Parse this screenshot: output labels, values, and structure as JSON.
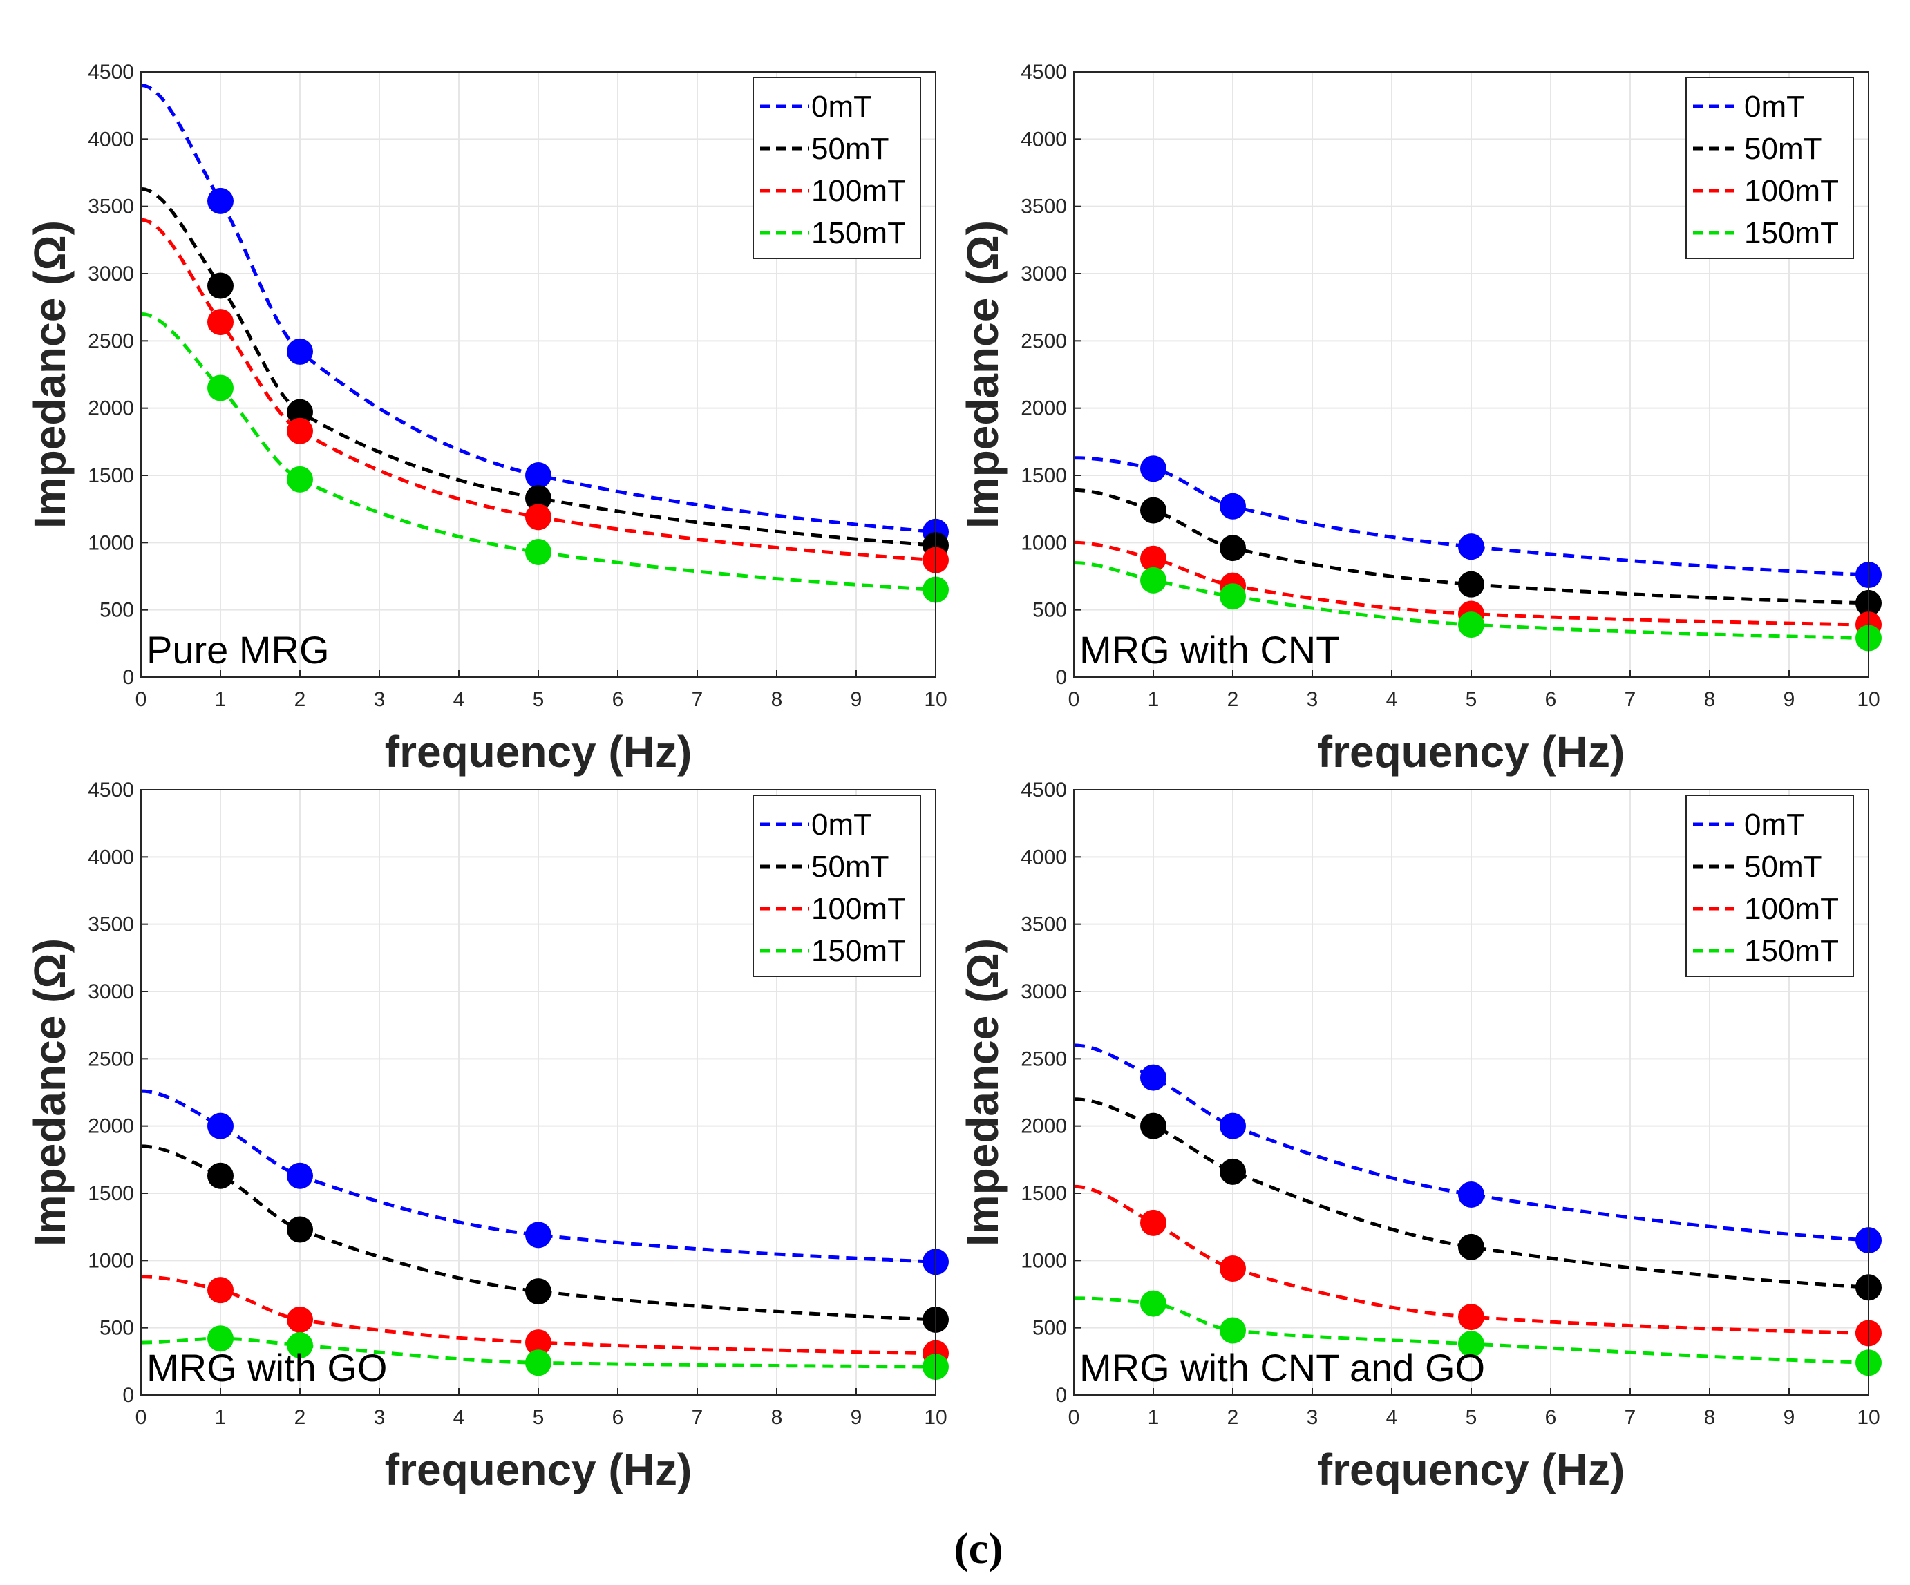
{
  "figure": {
    "caption": "(c)"
  },
  "chart_data": [
    {
      "type": "line",
      "panel_label": "Pure MRG",
      "xlabel": "frequency (Hz)",
      "ylabel": "Impedance (Ω)",
      "xlim": [
        0,
        10
      ],
      "ylim": [
        0,
        4500
      ],
      "x_ticks": [
        "0",
        "1",
        "2",
        "3",
        "4",
        "5",
        "6",
        "7",
        "8",
        "9",
        "10"
      ],
      "y_ticks": [
        "0",
        "500",
        "1000",
        "1500",
        "2000",
        "2500",
        "3000",
        "3500",
        "4000",
        "4500"
      ],
      "grid": true,
      "legend_position": "top-right",
      "x": [
        1,
        2,
        5,
        10
      ],
      "series": [
        {
          "name": "0mT",
          "color": "#0000ff",
          "values": [
            3540,
            2420,
            1500,
            1080
          ],
          "curve_start": 4400
        },
        {
          "name": "50mT",
          "color": "#000000",
          "values": [
            2910,
            1970,
            1330,
            980
          ],
          "curve_start": 3630
        },
        {
          "name": "100mT",
          "color": "#ff0000",
          "values": [
            2640,
            1830,
            1190,
            870
          ],
          "curve_start": 3400
        },
        {
          "name": "150mT",
          "color": "#00e000",
          "values": [
            2150,
            1470,
            930,
            650
          ],
          "curve_start": 2700
        }
      ]
    },
    {
      "type": "line",
      "panel_label": "MRG with CNT",
      "xlabel": "frequency (Hz)",
      "ylabel": "Impedance (Ω)",
      "xlim": [
        0,
        10
      ],
      "ylim": [
        0,
        4500
      ],
      "x_ticks": [
        "0",
        "1",
        "2",
        "3",
        "4",
        "5",
        "6",
        "7",
        "8",
        "9",
        "10"
      ],
      "y_ticks": [
        "0",
        "500",
        "1000",
        "1500",
        "2000",
        "2500",
        "3000",
        "3500",
        "4000",
        "4500"
      ],
      "grid": true,
      "legend_position": "top-right",
      "x": [
        1,
        2,
        5,
        10
      ],
      "series": [
        {
          "name": "0mT",
          "color": "#0000ff",
          "values": [
            1550,
            1270,
            970,
            760
          ],
          "curve_start": 1630
        },
        {
          "name": "50mT",
          "color": "#000000",
          "values": [
            1240,
            960,
            690,
            550
          ],
          "curve_start": 1390
        },
        {
          "name": "100mT",
          "color": "#ff0000",
          "values": [
            880,
            680,
            470,
            390
          ],
          "curve_start": 1000
        },
        {
          "name": "150mT",
          "color": "#00e000",
          "values": [
            720,
            600,
            390,
            290
          ],
          "curve_start": 850
        }
      ]
    },
    {
      "type": "line",
      "panel_label": "MRG with GO",
      "xlabel": "frequency (Hz)",
      "ylabel": "Impedance (Ω)",
      "xlim": [
        0,
        10
      ],
      "ylim": [
        0,
        4500
      ],
      "x_ticks": [
        "0",
        "1",
        "2",
        "3",
        "4",
        "5",
        "6",
        "7",
        "8",
        "9",
        "10"
      ],
      "y_ticks": [
        "0",
        "500",
        "1000",
        "1500",
        "2000",
        "2500",
        "3000",
        "3500",
        "4000",
        "4500"
      ],
      "grid": true,
      "legend_position": "top-right",
      "x": [
        1,
        2,
        5,
        10
      ],
      "series": [
        {
          "name": "0mT",
          "color": "#0000ff",
          "values": [
            2000,
            1630,
            1190,
            990
          ],
          "curve_start": 2260
        },
        {
          "name": "50mT",
          "color": "#000000",
          "values": [
            1630,
            1230,
            770,
            560
          ],
          "curve_start": 1850
        },
        {
          "name": "100mT",
          "color": "#ff0000",
          "values": [
            780,
            560,
            390,
            310
          ],
          "curve_start": 880
        },
        {
          "name": "150mT",
          "color": "#00e000",
          "values": [
            420,
            370,
            240,
            210
          ],
          "curve_start": 390
        }
      ]
    },
    {
      "type": "line",
      "panel_label": "MRG with CNT and GO",
      "xlabel": "frequency (Hz)",
      "ylabel": "Impedance (Ω)",
      "xlim": [
        0,
        10
      ],
      "ylim": [
        0,
        4500
      ],
      "x_ticks": [
        "0",
        "1",
        "2",
        "3",
        "4",
        "5",
        "6",
        "7",
        "8",
        "9",
        "10"
      ],
      "y_ticks": [
        "0",
        "500",
        "1000",
        "1500",
        "2000",
        "2500",
        "3000",
        "3500",
        "4000",
        "4500"
      ],
      "grid": true,
      "legend_position": "top-right",
      "x": [
        1,
        2,
        5,
        10
      ],
      "series": [
        {
          "name": "0mT",
          "color": "#0000ff",
          "values": [
            2360,
            2000,
            1490,
            1150
          ],
          "curve_start": 2600
        },
        {
          "name": "50mT",
          "color": "#000000",
          "values": [
            2000,
            1660,
            1100,
            800
          ],
          "curve_start": 2200
        },
        {
          "name": "100mT",
          "color": "#ff0000",
          "values": [
            1280,
            940,
            580,
            460
          ],
          "curve_start": 1550
        },
        {
          "name": "150mT",
          "color": "#00e000",
          "values": [
            680,
            480,
            380,
            240
          ],
          "curve_start": 720
        }
      ]
    }
  ]
}
